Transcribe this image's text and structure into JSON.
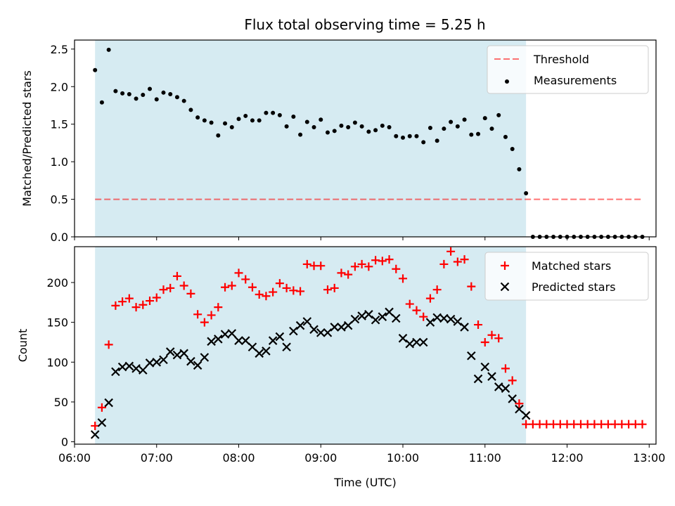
{
  "title": "Flux total observing time = 5.25 h",
  "colors": {
    "window_fill": "#add8e6",
    "threshold": "#ff0000",
    "measurement": "#000000",
    "matched": "#ff0000",
    "predicted": "#000000"
  },
  "chart_data": [
    {
      "type": "scatter",
      "ylabel": "Matched/Predicted stars",
      "xlim": [
        "06:00",
        "13:05"
      ],
      "ylim": [
        0,
        2.62
      ],
      "yticks": [
        "0.0",
        "0.5",
        "1.0",
        "1.5",
        "2.0",
        "2.5"
      ],
      "shaded_window": [
        "06:15",
        "11:30"
      ],
      "legend_position": "upper right",
      "threshold": {
        "name": "Threshold",
        "value": 0.5,
        "x_range": [
          "06:15",
          "12:55"
        ]
      },
      "series": [
        {
          "name": "Measurements",
          "x": [
            "06:15",
            "06:20",
            "06:25",
            "06:30",
            "06:35",
            "06:40",
            "06:45",
            "06:50",
            "06:55",
            "07:00",
            "07:05",
            "07:10",
            "07:15",
            "07:20",
            "07:25",
            "07:30",
            "07:35",
            "07:40",
            "07:45",
            "07:50",
            "07:55",
            "08:00",
            "08:05",
            "08:10",
            "08:15",
            "08:20",
            "08:25",
            "08:30",
            "08:35",
            "08:40",
            "08:45",
            "08:50",
            "08:55",
            "09:00",
            "09:05",
            "09:10",
            "09:15",
            "09:20",
            "09:25",
            "09:30",
            "09:35",
            "09:40",
            "09:45",
            "09:50",
            "09:55",
            "10:00",
            "10:05",
            "10:10",
            "10:15",
            "10:20",
            "10:25",
            "10:30",
            "10:35",
            "10:40",
            "10:45",
            "10:50",
            "10:55",
            "11:00",
            "11:05",
            "11:10",
            "11:15",
            "11:20",
            "11:25",
            "11:30",
            "11:35",
            "11:40",
            "11:45",
            "11:50",
            "11:55",
            "12:00",
            "12:05",
            "12:10",
            "12:15",
            "12:20",
            "12:25",
            "12:30",
            "12:35",
            "12:40",
            "12:45",
            "12:50",
            "12:55"
          ],
          "y": [
            2.22,
            1.79,
            2.49,
            1.94,
            1.91,
            1.9,
            1.84,
            1.89,
            1.97,
            1.83,
            1.92,
            1.9,
            1.86,
            1.81,
            1.69,
            1.59,
            1.55,
            1.52,
            1.35,
            1.51,
            1.46,
            1.57,
            1.61,
            1.55,
            1.55,
            1.65,
            1.65,
            1.62,
            1.47,
            1.6,
            1.36,
            1.53,
            1.46,
            1.56,
            1.39,
            1.41,
            1.48,
            1.46,
            1.52,
            1.47,
            1.4,
            1.42,
            1.48,
            1.46,
            1.34,
            1.32,
            1.34,
            1.34,
            1.26,
            1.45,
            1.28,
            1.44,
            1.53,
            1.47,
            1.56,
            1.36,
            1.37,
            1.58,
            1.44,
            1.62,
            1.33,
            1.17,
            0.9,
            0.58,
            0.0,
            0.0,
            0.0,
            0.0,
            0.0,
            0.0,
            0.0,
            0.0,
            0.0,
            0.0,
            0.0,
            0.0,
            0.0,
            0.0,
            0.0,
            0.0,
            0.0
          ]
        }
      ]
    },
    {
      "type": "scatter",
      "xlabel": "Time (UTC)",
      "ylabel": "Count",
      "xlim": [
        "06:00",
        "13:05"
      ],
      "ylim": [
        -3,
        245
      ],
      "yticks": [
        "0",
        "50",
        "100",
        "150",
        "200"
      ],
      "xticks": [
        "06:00",
        "07:00",
        "08:00",
        "09:00",
        "10:00",
        "11:00",
        "12:00",
        "13:00"
      ],
      "shaded_window": [
        "06:15",
        "11:30"
      ],
      "legend_position": "upper right",
      "series": [
        {
          "name": "Matched stars",
          "marker": "plus",
          "x": [
            "06:15",
            "06:20",
            "06:25",
            "06:30",
            "06:35",
            "06:40",
            "06:45",
            "06:50",
            "06:55",
            "07:00",
            "07:05",
            "07:10",
            "07:15",
            "07:20",
            "07:25",
            "07:30",
            "07:35",
            "07:40",
            "07:45",
            "07:50",
            "07:55",
            "08:00",
            "08:05",
            "08:10",
            "08:15",
            "08:20",
            "08:25",
            "08:30",
            "08:35",
            "08:40",
            "08:45",
            "08:50",
            "08:55",
            "09:00",
            "09:05",
            "09:10",
            "09:15",
            "09:20",
            "09:25",
            "09:30",
            "09:35",
            "09:40",
            "09:45",
            "09:50",
            "09:55",
            "10:00",
            "10:05",
            "10:10",
            "10:15",
            "10:20",
            "10:25",
            "10:30",
            "10:35",
            "10:40",
            "10:45",
            "10:50",
            "10:55",
            "11:00",
            "11:05",
            "11:10",
            "11:15",
            "11:20",
            "11:25",
            "11:30",
            "11:35",
            "11:40",
            "11:45",
            "11:50",
            "11:55",
            "12:00",
            "12:05",
            "12:10",
            "12:15",
            "12:20",
            "12:25",
            "12:30",
            "12:35",
            "12:40",
            "12:45",
            "12:50",
            "12:55"
          ],
          "y": [
            20,
            43,
            122,
            171,
            176,
            180,
            169,
            172,
            177,
            181,
            191,
            193,
            208,
            196,
            186,
            160,
            150,
            159,
            169,
            194,
            196,
            212,
            204,
            194,
            185,
            183,
            188,
            199,
            193,
            190,
            189,
            223,
            221,
            221,
            191,
            193,
            212,
            210,
            220,
            223,
            220,
            228,
            227,
            229,
            217,
            205,
            173,
            165,
            157,
            180,
            191,
            223,
            239,
            226,
            229,
            195,
            147,
            125,
            134,
            130,
            92,
            77,
            48,
            22,
            22,
            22,
            22,
            22,
            22,
            22,
            22,
            22,
            22,
            22,
            22,
            22,
            22,
            22,
            22,
            22,
            22
          ]
        },
        {
          "name": "Predicted stars",
          "marker": "x",
          "x": [
            "06:15",
            "06:20",
            "06:25",
            "06:30",
            "06:35",
            "06:40",
            "06:45",
            "06:50",
            "06:55",
            "07:00",
            "07:05",
            "07:10",
            "07:15",
            "07:20",
            "07:25",
            "07:30",
            "07:35",
            "07:40",
            "07:45",
            "07:50",
            "07:55",
            "08:00",
            "08:05",
            "08:10",
            "08:15",
            "08:20",
            "08:25",
            "08:30",
            "08:35",
            "08:40",
            "08:45",
            "08:50",
            "08:55",
            "09:00",
            "09:05",
            "09:10",
            "09:15",
            "09:20",
            "09:25",
            "09:30",
            "09:35",
            "09:40",
            "09:45",
            "09:50",
            "09:55",
            "10:00",
            "10:05",
            "10:10",
            "10:15",
            "10:20",
            "10:25",
            "10:30",
            "10:35",
            "10:40",
            "10:45",
            "10:50",
            "10:55",
            "11:00",
            "11:05",
            "11:10",
            "11:15",
            "11:20",
            "11:25",
            "11:30"
          ],
          "y": [
            9,
            24,
            49,
            88,
            94,
            95,
            92,
            90,
            99,
            100,
            103,
            113,
            109,
            111,
            101,
            96,
            106,
            126,
            129,
            135,
            136,
            127,
            127,
            119,
            111,
            114,
            127,
            132,
            119,
            139,
            146,
            151,
            141,
            137,
            137,
            144,
            144,
            146,
            154,
            158,
            160,
            153,
            157,
            163,
            155,
            130,
            123,
            125,
            125,
            150,
            156,
            155,
            154,
            151,
            144,
            108,
            79,
            94,
            82,
            69,
            67,
            54,
            41,
            33
          ]
        }
      ]
    }
  ]
}
